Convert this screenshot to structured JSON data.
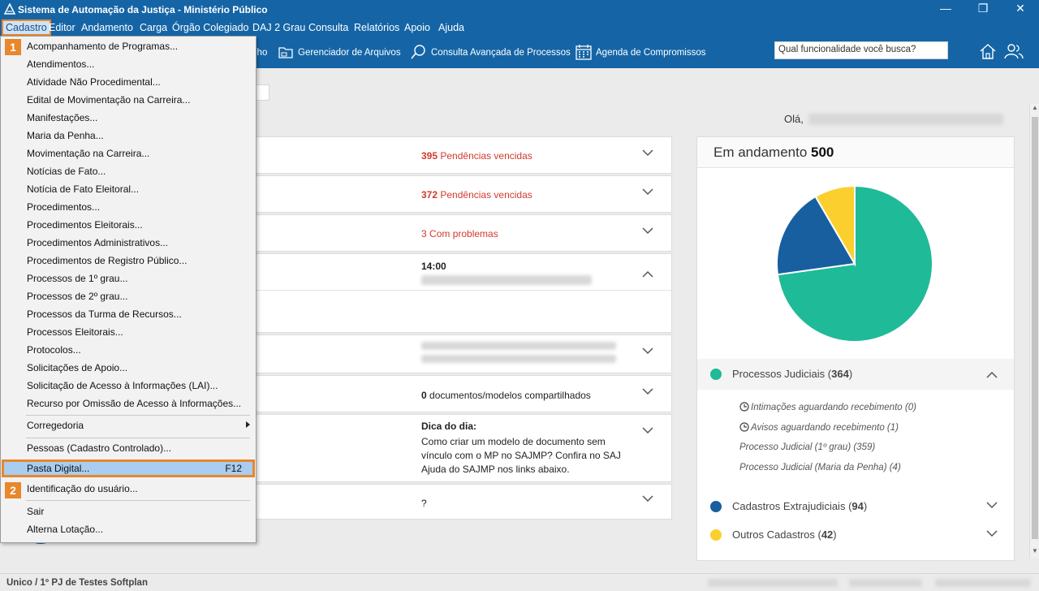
{
  "window": {
    "title": "Sistema de Automação da Justiça - Ministério Público",
    "minimize": "—",
    "restore": "❐",
    "close": "✕"
  },
  "menubar": {
    "items": [
      "Cadastro",
      "Editor",
      "Andamento",
      "Carga",
      "Órgão Colegiado",
      "DAJ 2 Grau",
      "Consulta",
      "Relatórios",
      "Apoio",
      "Ajuda"
    ]
  },
  "toolbar": {
    "partial_label": "lho",
    "file_manager": "Gerenciador de Arquivos",
    "advanced_search": "Consulta Avançada de Processos",
    "agenda": "Agenda de Compromissos",
    "search_placeholder": "Qual funcionalidade você busca?"
  },
  "dropdown": {
    "items": [
      "Acompanhamento de Programas...",
      "Atendimentos...",
      "Atividade Não Procedimental...",
      "Edital de Movimentação na Carreira...",
      "Manifestações...",
      "Maria da Penha...",
      "Movimentação na Carreira...",
      "Notícias de Fato...",
      "Notícia de Fato Eleitoral...",
      "Procedimentos...",
      "Procedimentos Eleitorais...",
      "Procedimentos Administrativos...",
      "Procedimentos de Registro Público...",
      "Processos de 1º grau...",
      "Processos de 2º grau...",
      "Processos da Turma de Recursos...",
      "Processos Eleitorais...",
      "Protocolos...",
      "Solicitações de Apoio...",
      "Solicitação de Acesso à Informações (LAI)...",
      "Recurso por Omissão de Acesso à Informações..."
    ],
    "corregedoria": "Corregedoria",
    "pessoas": "Pessoas (Cadastro Controlado)...",
    "pasta_digital": "Pasta Digital...",
    "pasta_digital_key": "F12",
    "identificacao": "Identificação do usuário...",
    "sair": "Sair",
    "alterna": "Alterna Lotação...",
    "badge1": "1",
    "badge2": "2"
  },
  "greeting": "Olá,",
  "cards": {
    "c1": {
      "count": "395",
      "text": " Pendências vencidas"
    },
    "c2": {
      "count": "372",
      "text": " Pendências vencidas"
    },
    "c3": {
      "count": "3",
      "text": " Com problemas"
    },
    "c4": {
      "time": "14:00"
    },
    "c6": {
      "count": "0",
      "text": " documentos/modelos compartilhados"
    },
    "c7": {
      "title": "Dica do dia:",
      "body": "Como criar um modelo de documento sem vínculo com o MP no SAJMP? Confira no SAJ Ajuda do SAJMP nos links abaixo."
    },
    "c8": {
      "text": "?"
    }
  },
  "panel": {
    "title": "Em andamento ",
    "total": "500",
    "colors": {
      "judiciais": "#1fba98",
      "extrajudiciais": "#175f9f",
      "outros": "#fbcf2e"
    },
    "legend": [
      {
        "label": "Processos Judiciais",
        "count": "364"
      },
      {
        "label": "Cadastros Extrajudiciais",
        "count": "94"
      },
      {
        "label": "Outros Cadastros",
        "count": "42"
      }
    ],
    "sub_items": [
      "Intimações aguardando recebimento (0)",
      "Avisos aguardando recebimento (1)",
      "Processo Judicial (1º grau) (359)",
      "Processo Judicial (Maria da Penha) (4)"
    ]
  },
  "statusbar": {
    "text": "Unico / 1º PJ de Testes Softplan"
  }
}
